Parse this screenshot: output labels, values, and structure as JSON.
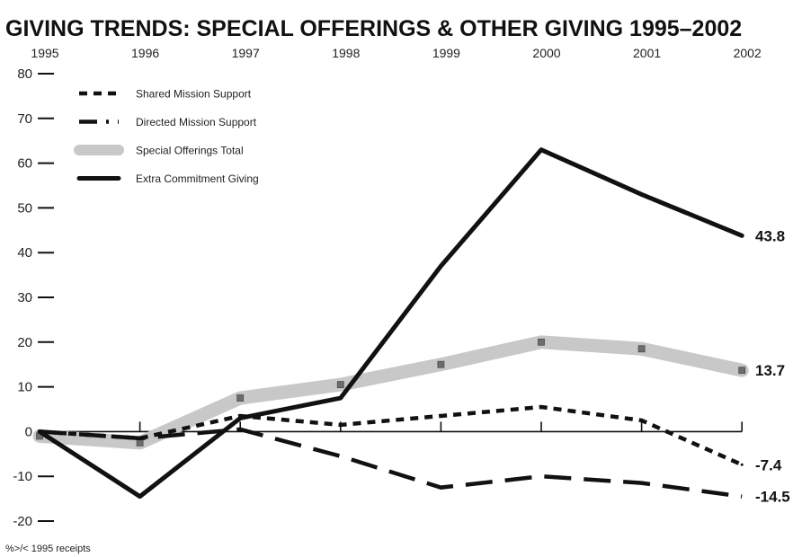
{
  "chart_data": {
    "type": "line",
    "title": "GIVING TRENDS: SPECIAL OFFERINGS & OTHER GIVING 1995–2002",
    "footnote": "%>/< 1995 receipts",
    "x": [
      "1995",
      "1996",
      "1997",
      "1998",
      "1999",
      "2000",
      "2001",
      "2002"
    ],
    "ylim": [
      -20,
      80
    ],
    "yticks": [
      "80",
      "70",
      "60",
      "50",
      "40",
      "30",
      "20",
      "10",
      "0",
      "-10",
      "-20"
    ],
    "legend_position": "top-left",
    "grid": false,
    "series": [
      {
        "name": "Shared Mission Support",
        "style": "short-dash",
        "color": "#111111",
        "values": [
          0,
          -1.5,
          3.5,
          1.5,
          3.5,
          5.5,
          2.5,
          -7.4
        ],
        "end_label": "-7.4"
      },
      {
        "name": "Directed Mission Support",
        "style": "long-dash",
        "color": "#111111",
        "values": [
          0,
          -1.5,
          0.5,
          -5.5,
          -12.5,
          -10,
          -11.5,
          -14.5
        ],
        "end_label": "-14.5"
      },
      {
        "name": "Special Offerings Total",
        "style": "thick-gray",
        "color": "#c8c8c8",
        "values": [
          -1,
          -2.5,
          7.5,
          10.5,
          15,
          20,
          18.5,
          13.7
        ],
        "end_label": "13.7"
      },
      {
        "name": "Extra Commitment Giving",
        "style": "solid-black",
        "color": "#111111",
        "values": [
          0,
          -14.5,
          3,
          7.5,
          37,
          63,
          53,
          43.8
        ],
        "end_label": "43.8"
      }
    ]
  }
}
